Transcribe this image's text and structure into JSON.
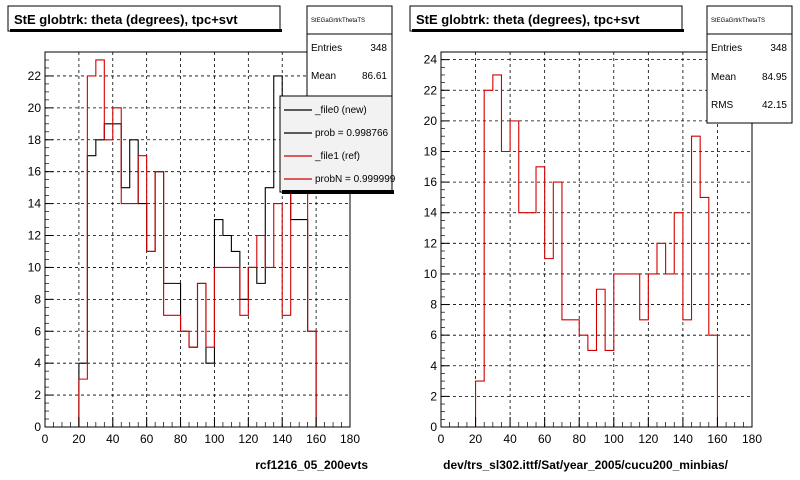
{
  "footer_stamp": "",
  "chart_data": [
    {
      "type": "histogram",
      "title": "StE globtrk: theta (degrees), tpc+svt",
      "xlabel": "rcf1216_05_200evts",
      "ylabel": "",
      "xlim": [
        0,
        180
      ],
      "ylim": [
        0,
        23.5
      ],
      "x_ticks": [
        0,
        20,
        40,
        60,
        80,
        100,
        120,
        140,
        160,
        180
      ],
      "y_ticks": [
        0,
        2,
        4,
        6,
        8,
        10,
        12,
        14,
        16,
        18,
        20,
        22
      ],
      "grid": true,
      "bin_edges": [
        20,
        25,
        30,
        35,
        40,
        45,
        50,
        55,
        60,
        65,
        70,
        75,
        80,
        85,
        90,
        95,
        100,
        105,
        110,
        115,
        120,
        125,
        130,
        135,
        140,
        145,
        150,
        155,
        160
      ],
      "stats": {
        "name": "StEGaGrtrkThetaTS",
        "entries_label": "Entries",
        "entries": "348",
        "mean_label": "Mean",
        "mean": "86.61"
      },
      "legend": [
        {
          "label": "_file0 (new)",
          "color": "#000000"
        },
        {
          "label": "prob = 0.998766",
          "color": "#000000"
        },
        {
          "label": "_file1 (ref)",
          "color": "#d00000"
        },
        {
          "label": "probN = 0.999999",
          "color": "#d00000"
        }
      ],
      "series": [
        {
          "name": "_file0 (new)",
          "color": "#000000",
          "values": [
            4,
            17,
            18,
            19,
            19,
            15,
            18,
            14,
            11,
            16,
            9,
            9,
            6,
            5,
            9,
            4,
            13,
            12,
            11,
            8,
            10,
            9,
            15,
            22,
            19,
            13,
            13,
            6
          ]
        },
        {
          "name": "_file1 (ref)",
          "color": "#d00000",
          "values": [
            3,
            22,
            23,
            18,
            20,
            14,
            14,
            17,
            11,
            16,
            7,
            7,
            6,
            5,
            9,
            5,
            10,
            10,
            10,
            7,
            10,
            12,
            10,
            14,
            7,
            19,
            15,
            6
          ]
        }
      ]
    },
    {
      "type": "histogram",
      "title": "StE globtrk: theta (degrees), tpc+svt",
      "xlabel": "dev/trs_sl302.ittf/Sat/year_2005/cucu200_minbias/",
      "ylabel": "",
      "xlim": [
        0,
        180
      ],
      "ylim": [
        0,
        24.5
      ],
      "x_ticks": [
        0,
        20,
        40,
        60,
        80,
        100,
        120,
        140,
        160,
        180
      ],
      "y_ticks": [
        0,
        2,
        4,
        6,
        8,
        10,
        12,
        14,
        16,
        18,
        20,
        22,
        24
      ],
      "grid": true,
      "bin_edges": [
        20,
        25,
        30,
        35,
        40,
        45,
        50,
        55,
        60,
        65,
        70,
        75,
        80,
        85,
        90,
        95,
        100,
        105,
        110,
        115,
        120,
        125,
        130,
        135,
        140,
        145,
        150,
        155,
        160
      ],
      "stats": {
        "name": "StEGaGrtrkThetaTS",
        "entries_label": "Entries",
        "entries": "348",
        "mean_label": "Mean",
        "mean": "84.95",
        "rms_label": "RMS",
        "rms": "42.15"
      },
      "series": [
        {
          "name": "",
          "color": "#d00000",
          "values": [
            3,
            22,
            23,
            18,
            20,
            14,
            14,
            17,
            11,
            16,
            7,
            7,
            6,
            5,
            9,
            5,
            10,
            10,
            10,
            7,
            10,
            12,
            10,
            14,
            7,
            19,
            15,
            6
          ]
        }
      ]
    }
  ]
}
